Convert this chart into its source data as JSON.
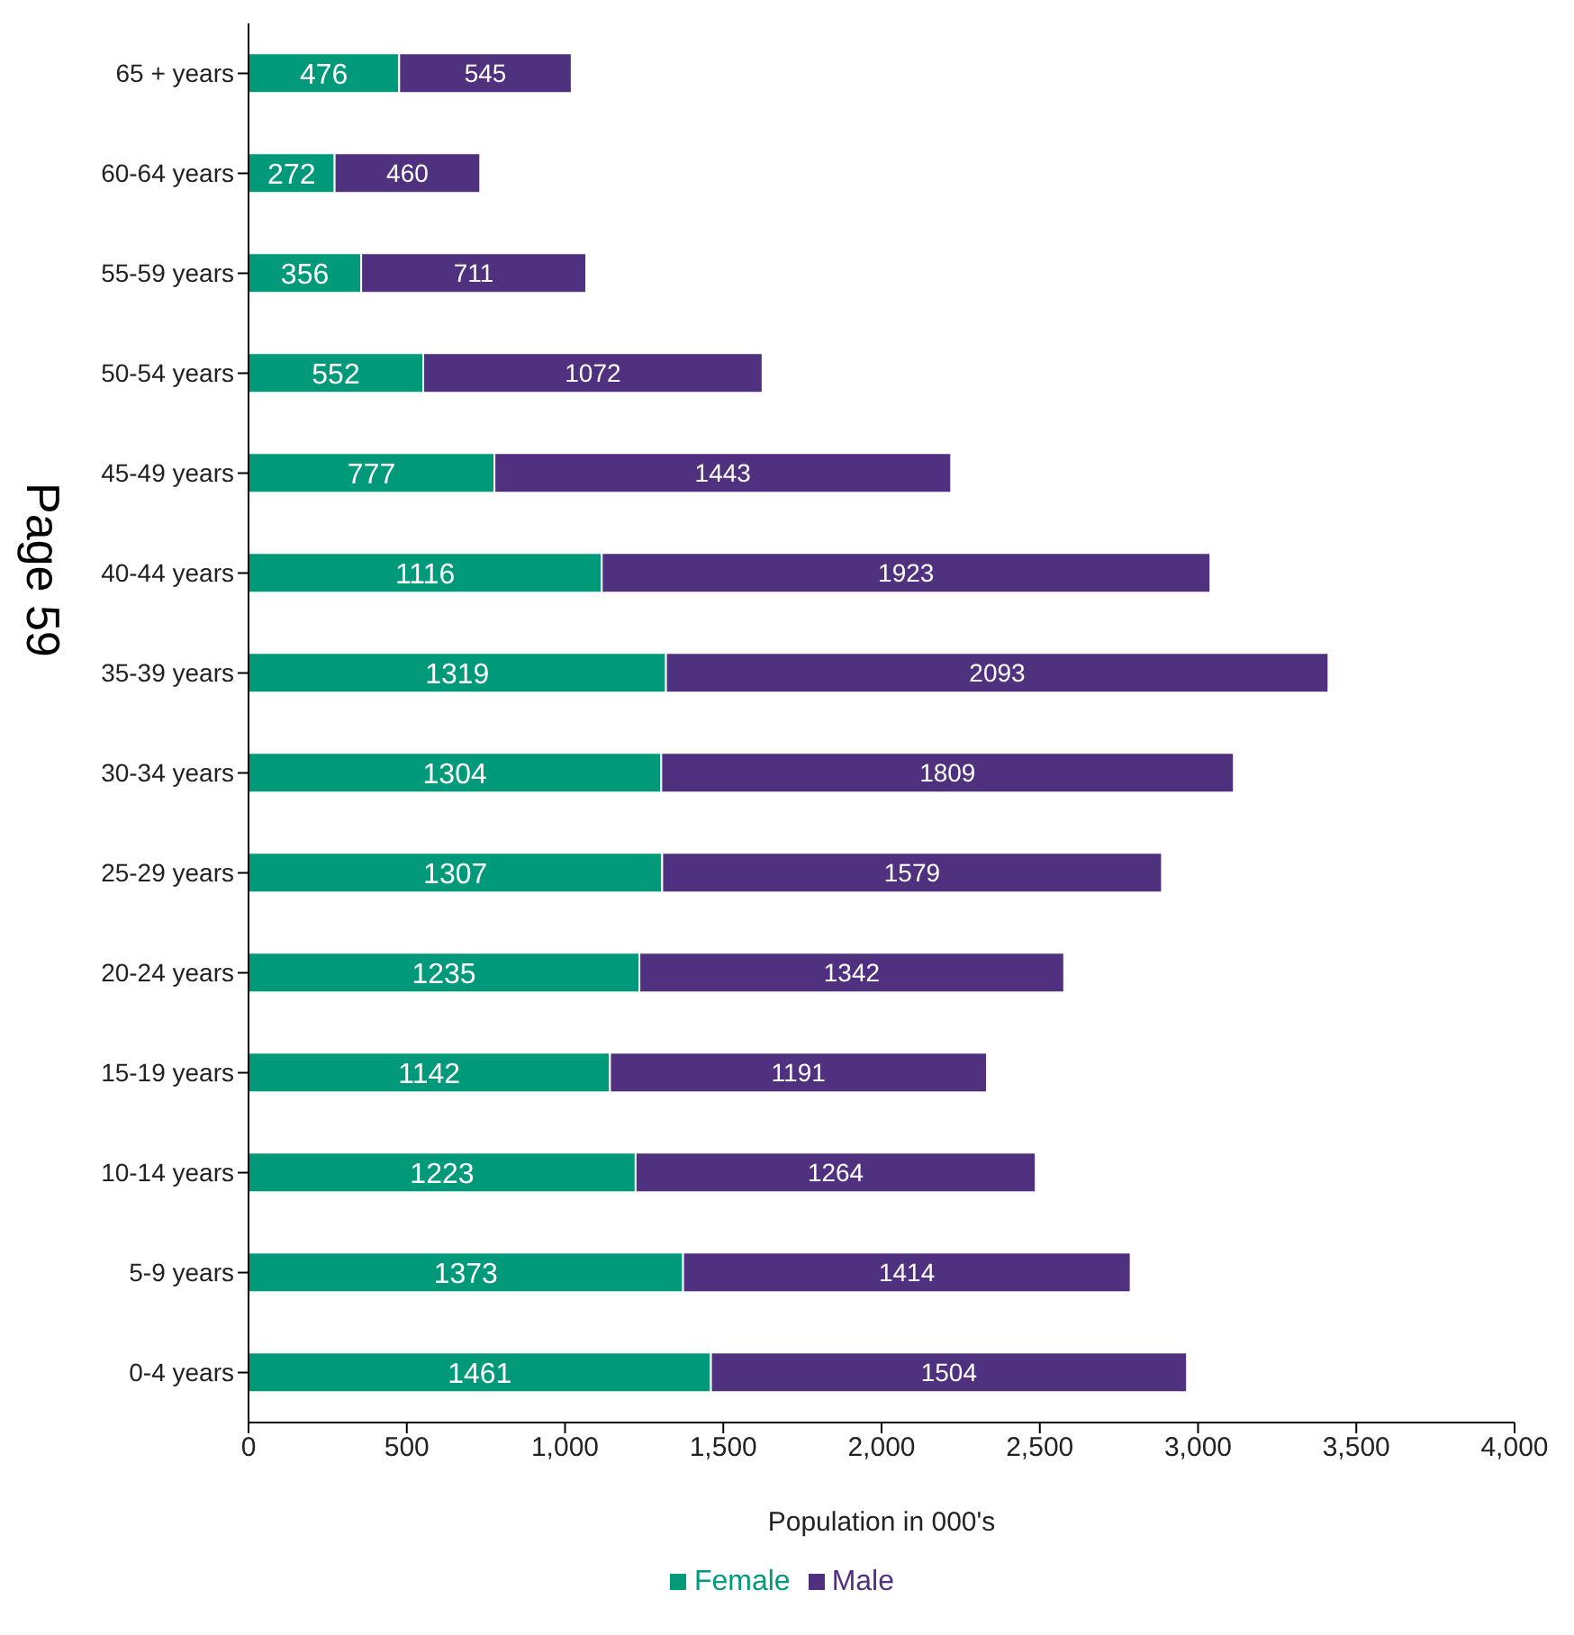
{
  "chart_data": {
    "type": "bar",
    "orientation": "horizontal",
    "stacked": true,
    "xlabel": "Population in 000's",
    "categories": [
      "65 + years",
      "60-64 years",
      "55-59 years",
      "50-54 years",
      "45-49 years",
      "40-44 years",
      "35-39 years",
      "30-34 years",
      "25-29 years",
      "20-24 years",
      "15-19 years",
      "10-14 years",
      "5-9 years",
      "0-4 years"
    ],
    "series": [
      {
        "name": "Female",
        "color": "#009a7a",
        "values": [
          476,
          272,
          356,
          552,
          777,
          1116,
          1319,
          1304,
          1307,
          1235,
          1142,
          1223,
          1373,
          1461
        ]
      },
      {
        "name": "Male",
        "color": "#50317f",
        "values": [
          545,
          460,
          711,
          1072,
          1443,
          1923,
          2093,
          1809,
          1579,
          1342,
          1191,
          1264,
          1414,
          1504
        ]
      }
    ],
    "xlim": [
      0,
      4000
    ],
    "xticks": [
      0,
      500,
      {
        "value": 1000,
        "label": "1,000"
      },
      {
        "value": 1500,
        "label": "1,500"
      },
      {
        "value": 2000,
        "label": "2,000"
      },
      {
        "value": 2500,
        "label": "2,500"
      },
      {
        "value": 3000,
        "label": "3,000"
      },
      {
        "value": 3500,
        "label": "3,500"
      },
      {
        "value": 4000,
        "label": "4,000"
      }
    ],
    "data_labels": true,
    "legend": "bottom",
    "grid": false,
    "annotations": [
      "Page 59"
    ]
  }
}
